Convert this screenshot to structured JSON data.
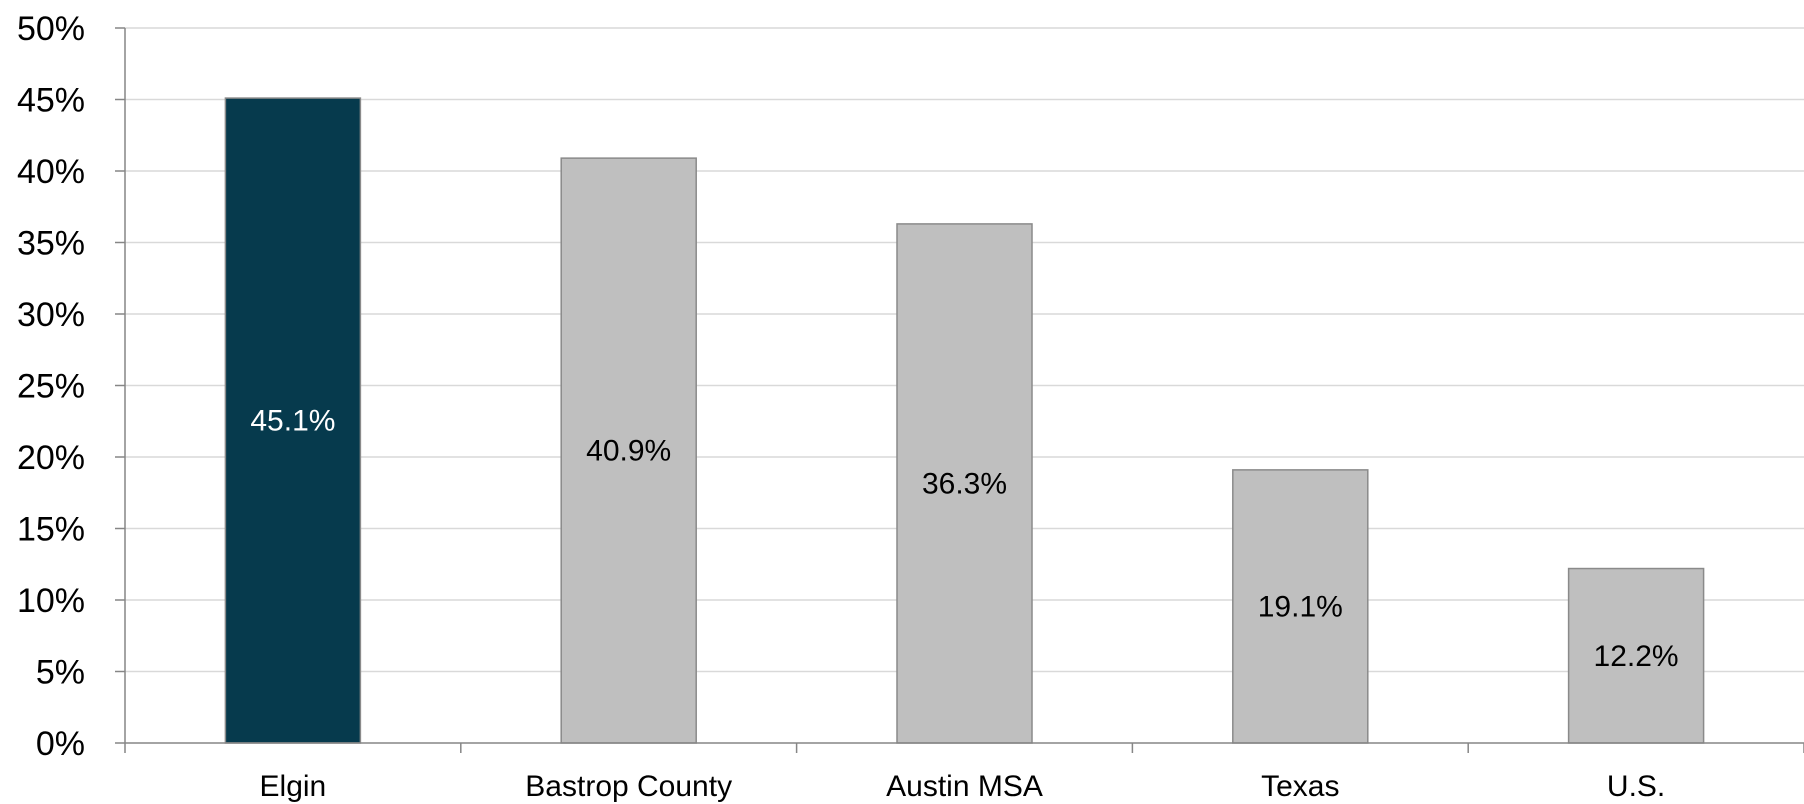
{
  "chart_data": {
    "type": "bar",
    "categories": [
      "Elgin",
      "Bastrop County",
      "Austin MSA",
      "Texas",
      "U.S."
    ],
    "values": [
      45.1,
      40.9,
      36.3,
      19.1,
      12.2
    ],
    "data_labels": [
      "45.1%",
      "40.9%",
      "36.3%",
      "19.1%",
      "12.2%"
    ],
    "title": "",
    "xlabel": "",
    "ylabel": "",
    "ylim": [
      0,
      50
    ],
    "yticks": [
      "0%",
      "5%",
      "10%",
      "15%",
      "20%",
      "25%",
      "30%",
      "35%",
      "40%",
      "45%",
      "50%"
    ],
    "grid": true,
    "legend": "none",
    "colors": {
      "highlight": "#063a4d",
      "default": "#bfbfbf",
      "bar_border": "#8a8a8a",
      "grid": "#d9d9d9",
      "axis": "#868686",
      "highlight_label": "#ffffff",
      "default_label": "#000000"
    },
    "highlight_index": 0
  }
}
